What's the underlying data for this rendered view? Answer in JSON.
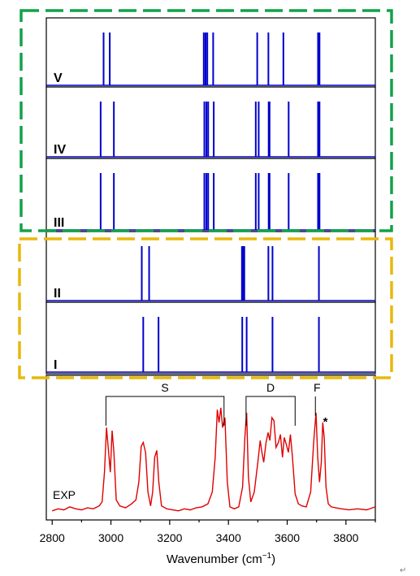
{
  "chart_data": {
    "type": "line",
    "xlabel_prefix": "Wavenumber (cm",
    "xlabel_sup": "−1",
    "xlabel_suffix": ")",
    "xlim": [
      2780,
      3900
    ],
    "xticks": [
      2800,
      3000,
      3200,
      3400,
      3600,
      3800
    ],
    "stick_panels": [
      {
        "name": "V",
        "peaks": [
          2975,
          2996,
          3316,
          3322,
          3328,
          3348,
          3498,
          3536,
          3587,
          3705,
          3710
        ]
      },
      {
        "name": "IV",
        "peaks": [
          2965,
          3010,
          3318,
          3325,
          3331,
          3350,
          3493,
          3503,
          3537,
          3540,
          3605,
          3705,
          3710
        ]
      },
      {
        "name": "III",
        "peaks": [
          2965,
          3010,
          3318,
          3325,
          3331,
          3350,
          3493,
          3503,
          3537,
          3540,
          3605,
          3705,
          3710
        ]
      },
      {
        "name": "II",
        "peaks": [
          3105,
          3130,
          3446,
          3450,
          3454,
          3536,
          3550,
          3708
        ]
      },
      {
        "name": "I",
        "peaks": [
          3110,
          3162,
          3447,
          3462,
          3550,
          3708
        ]
      }
    ],
    "experimental": {
      "name": "EXP",
      "x": [
        2800,
        2820,
        2840,
        2860,
        2880,
        2900,
        2920,
        2940,
        2960,
        2970,
        2978,
        2985,
        2992,
        2998,
        3004,
        3010,
        3018,
        3030,
        3050,
        3070,
        3085,
        3095,
        3103,
        3110,
        3118,
        3126,
        3135,
        3142,
        3149,
        3156,
        3163,
        3172,
        3190,
        3210,
        3230,
        3250,
        3270,
        3290,
        3310,
        3330,
        3345,
        3355,
        3362,
        3368,
        3374,
        3380,
        3388,
        3396,
        3405,
        3420,
        3435,
        3448,
        3456,
        3462,
        3468,
        3476,
        3488,
        3500,
        3508,
        3514,
        3520,
        3528,
        3535,
        3541,
        3548,
        3555,
        3562,
        3570,
        3577,
        3584,
        3590,
        3597,
        3604,
        3611,
        3618,
        3627,
        3638,
        3650,
        3665,
        3680,
        3690,
        3698,
        3704,
        3710,
        3716,
        3721,
        3726,
        3732,
        3740,
        3750,
        3765,
        3785,
        3810,
        3840,
        3870,
        3900
      ],
      "y": [
        0.01,
        0.03,
        0.02,
        0.05,
        0.03,
        0.02,
        0.04,
        0.03,
        0.06,
        0.1,
        0.4,
        0.85,
        0.6,
        0.4,
        0.82,
        0.6,
        0.12,
        0.06,
        0.04,
        0.08,
        0.12,
        0.3,
        0.66,
        0.7,
        0.6,
        0.2,
        0.06,
        0.2,
        0.55,
        0.62,
        0.3,
        0.06,
        0.03,
        0.02,
        0.01,
        0.03,
        0.02,
        0.04,
        0.05,
        0.08,
        0.2,
        0.55,
        1.03,
        0.9,
        1.05,
        0.85,
        0.95,
        0.3,
        0.05,
        0.03,
        0.05,
        0.25,
        0.75,
        1.0,
        0.35,
        0.1,
        0.2,
        0.5,
        0.72,
        0.6,
        0.5,
        0.7,
        0.8,
        0.72,
        0.95,
        0.92,
        0.65,
        0.7,
        0.78,
        0.55,
        0.75,
        0.68,
        0.6,
        0.78,
        0.55,
        0.18,
        0.08,
        0.06,
        0.05,
        0.2,
        0.7,
        1.0,
        0.55,
        0.3,
        0.5,
        0.9,
        0.75,
        0.25,
        0.08,
        0.05,
        0.04,
        0.03,
        0.02,
        0.03,
        0.02,
        0.05
      ]
    },
    "annotations": [
      {
        "label": "S",
        "from": 2983,
        "to": 3385
      },
      {
        "label": "D",
        "from": 3460,
        "to": 3627
      },
      {
        "label": "F",
        "at": 3696
      }
    ],
    "star": "*",
    "star_at": 3730,
    "highlight_colors": {
      "group_green": "#12a24a",
      "group_yellow": "#e8b90c"
    },
    "stick_color": "#0000cc",
    "exp_color": "#e00000"
  },
  "footer_glyph": "↵"
}
